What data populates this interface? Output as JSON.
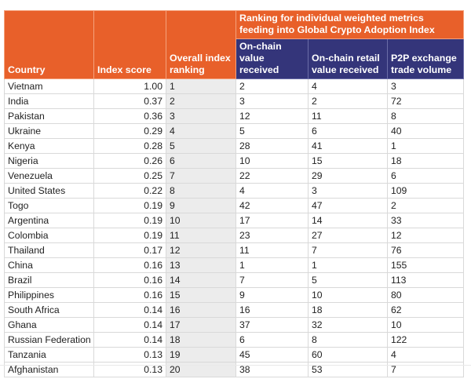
{
  "header": {
    "country": "Country",
    "index_score": "Index score",
    "overall_ranking": "Overall index ranking",
    "group_title": "Ranking for individual weighted metrics feeding into Global Crypto Adoption Index",
    "onchain_value": "On-chain value received",
    "onchain_retail": "On-chain retail value received",
    "p2p_volume": "P2P exchange trade volume"
  },
  "rows": [
    {
      "country": "Vietnam",
      "score": "1.00",
      "rank": "1",
      "onchain": "2",
      "retail": "4",
      "p2p": "3"
    },
    {
      "country": "India",
      "score": "0.37",
      "rank": "2",
      "onchain": "3",
      "retail": "2",
      "p2p": "72"
    },
    {
      "country": "Pakistan",
      "score": "0.36",
      "rank": "3",
      "onchain": "12",
      "retail": "11",
      "p2p": "8"
    },
    {
      "country": "Ukraine",
      "score": "0.29",
      "rank": "4",
      "onchain": "5",
      "retail": "6",
      "p2p": "40"
    },
    {
      "country": "Kenya",
      "score": "0.28",
      "rank": "5",
      "onchain": "28",
      "retail": "41",
      "p2p": "1"
    },
    {
      "country": "Nigeria",
      "score": "0.26",
      "rank": "6",
      "onchain": "10",
      "retail": "15",
      "p2p": "18"
    },
    {
      "country": "Venezuela",
      "score": "0.25",
      "rank": "7",
      "onchain": "22",
      "retail": "29",
      "p2p": "6"
    },
    {
      "country": "United States",
      "score": "0.22",
      "rank": "8",
      "onchain": "4",
      "retail": "3",
      "p2p": "109"
    },
    {
      "country": "Togo",
      "score": "0.19",
      "rank": "9",
      "onchain": "42",
      "retail": "47",
      "p2p": "2"
    },
    {
      "country": "Argentina",
      "score": "0.19",
      "rank": "10",
      "onchain": "17",
      "retail": "14",
      "p2p": "33"
    },
    {
      "country": "Colombia",
      "score": "0.19",
      "rank": "11",
      "onchain": "23",
      "retail": "27",
      "p2p": "12"
    },
    {
      "country": "Thailand",
      "score": "0.17",
      "rank": "12",
      "onchain": "11",
      "retail": "7",
      "p2p": "76"
    },
    {
      "country": "China",
      "score": "0.16",
      "rank": "13",
      "onchain": "1",
      "retail": "1",
      "p2p": "155"
    },
    {
      "country": "Brazil",
      "score": "0.16",
      "rank": "14",
      "onchain": "7",
      "retail": "5",
      "p2p": "113"
    },
    {
      "country": "Philippines",
      "score": "0.16",
      "rank": "15",
      "onchain": "9",
      "retail": "10",
      "p2p": "80"
    },
    {
      "country": "South Africa",
      "score": "0.14",
      "rank": "16",
      "onchain": "16",
      "retail": "18",
      "p2p": "62"
    },
    {
      "country": "Ghana",
      "score": "0.14",
      "rank": "17",
      "onchain": "37",
      "retail": "32",
      "p2p": "10"
    },
    {
      "country": "Russian Federation",
      "score": "0.14",
      "rank": "18",
      "onchain": "6",
      "retail": "8",
      "p2p": "122"
    },
    {
      "country": "Tanzania",
      "score": "0.13",
      "rank": "19",
      "onchain": "45",
      "retail": "60",
      "p2p": "4"
    },
    {
      "country": "Afghanistan",
      "score": "0.13",
      "rank": "20",
      "onchain": "38",
      "retail": "53",
      "p2p": "7"
    }
  ]
}
